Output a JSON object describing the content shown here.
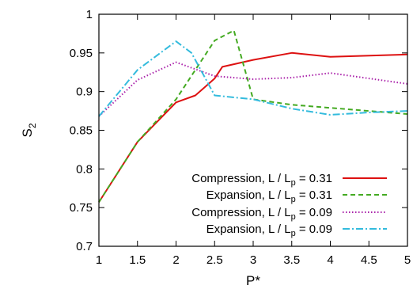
{
  "chart_data": {
    "type": "line",
    "title": "",
    "xlabel": "P*",
    "ylabel": "S2",
    "xlim": [
      1,
      5
    ],
    "ylim": [
      0.7,
      1.0
    ],
    "xticks": [
      "1",
      "1.5",
      "2",
      "2.5",
      "3",
      "3.5",
      "4",
      "4.5",
      "5"
    ],
    "yticks": [
      "0.7",
      "0.75",
      "0.8",
      "0.85",
      "0.9",
      "0.95",
      "1"
    ],
    "grid": false,
    "legend_position": "bottom-right",
    "series": [
      {
        "name": "Compression, L / Lp = 0.31",
        "legend_parts": {
          "base": "Compression, L / L",
          "sub": "p",
          "tail": " = 0.31"
        },
        "color": "#dd1111",
        "dash": "solid",
        "x": [
          1.0,
          1.5,
          2.0,
          2.25,
          2.5,
          2.6,
          3.0,
          3.5,
          4.0,
          5.0
        ],
        "y": [
          0.757,
          0.835,
          0.886,
          0.895,
          0.917,
          0.932,
          0.941,
          0.95,
          0.945,
          0.948
        ]
      },
      {
        "name": "Expansion, L / Lp = 0.31",
        "legend_parts": {
          "base": "Expansion, L / L",
          "sub": "p",
          "tail": " = 0.31"
        },
        "color": "#44aa22",
        "dash": "dashed",
        "x": [
          1.0,
          1.5,
          2.0,
          2.5,
          2.75,
          3.0,
          3.5,
          4.0,
          5.0
        ],
        "y": [
          0.757,
          0.835,
          0.89,
          0.966,
          0.979,
          0.89,
          0.883,
          0.879,
          0.871
        ]
      },
      {
        "name": "Compression, L / Lp = 0.09",
        "legend_parts": {
          "base": "Compression, L / L",
          "sub": "p",
          "tail": " = 0.09"
        },
        "color": "#aa22aa",
        "dash": "dotted",
        "x": [
          1.0,
          1.5,
          2.0,
          2.5,
          3.0,
          3.5,
          4.0,
          5.0
        ],
        "y": [
          0.868,
          0.915,
          0.938,
          0.92,
          0.916,
          0.918,
          0.924,
          0.91
        ]
      },
      {
        "name": "Expansion, L / Lp = 0.09",
        "legend_parts": {
          "base": "Expansion, L / L",
          "sub": "p",
          "tail": " = 0.09"
        },
        "color": "#33bbdd",
        "dash": "dashdot",
        "x": [
          1.0,
          1.5,
          2.0,
          2.2,
          2.5,
          3.0,
          3.5,
          4.0,
          4.5,
          5.0
        ],
        "y": [
          0.868,
          0.928,
          0.965,
          0.95,
          0.895,
          0.89,
          0.878,
          0.87,
          0.873,
          0.875
        ]
      }
    ]
  }
}
